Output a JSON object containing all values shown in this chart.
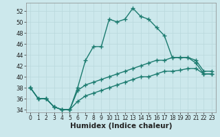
{
  "xlabel": "Humidex (Indice chaleur)",
  "background_color": "#cce8ec",
  "line_color": "#1a7a6e",
  "xlim": [
    -0.5,
    23.5
  ],
  "ylim": [
    33.5,
    53.5
  ],
  "xticks": [
    0,
    1,
    2,
    3,
    4,
    5,
    6,
    7,
    8,
    9,
    10,
    11,
    12,
    13,
    14,
    15,
    16,
    17,
    18,
    19,
    20,
    21,
    22,
    23
  ],
  "yticks": [
    34,
    36,
    38,
    40,
    42,
    44,
    46,
    48,
    50,
    52
  ],
  "series": [
    [
      38,
      36,
      36,
      34.5,
      34,
      34,
      38,
      43,
      45.5,
      45.5,
      50.5,
      50,
      50.5,
      52.5,
      51,
      50.5,
      49,
      47.5,
      43.5,
      43.5,
      43.5,
      42.5,
      40.5,
      40.5
    ],
    [
      38,
      36,
      36,
      34.5,
      34,
      34,
      37.5,
      38.5,
      39,
      39.5,
      40,
      40.5,
      41,
      41.5,
      42,
      42.5,
      43,
      43,
      43.5,
      43.5,
      43.5,
      43,
      41,
      41
    ],
    [
      38,
      36,
      36,
      34.5,
      34,
      34,
      35.5,
      36.5,
      37,
      37.5,
      38,
      38.5,
      39,
      39.5,
      40,
      40,
      40.5,
      41,
      41,
      41.2,
      41.5,
      41.5,
      40.5,
      40.5
    ]
  ],
  "grid_color": "#b8d8dc",
  "tick_fontsize": 6.5,
  "xlabel_fontsize": 7.5,
  "marker": "+",
  "markersize": 4.5,
  "linewidth": 1.0
}
